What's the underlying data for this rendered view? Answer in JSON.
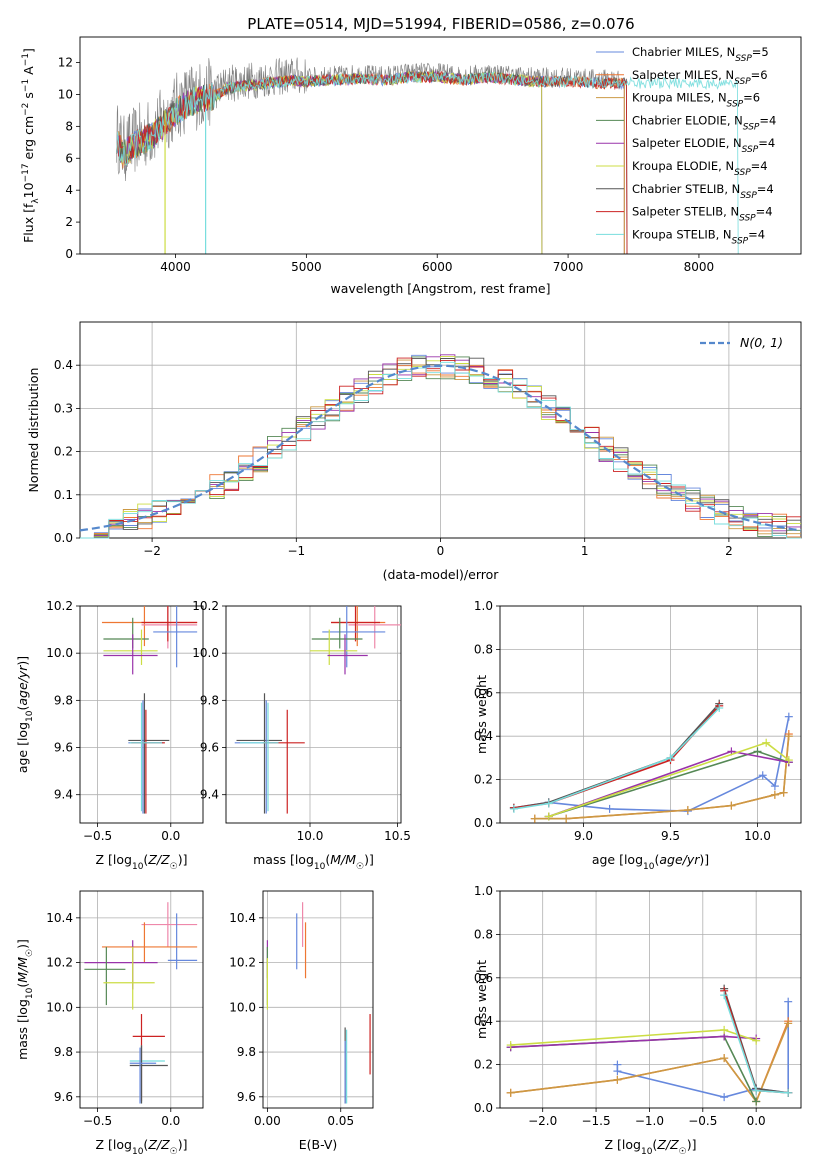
{
  "figure": {
    "title": "PLATE=0514, MJD=51994, FIBERID=0586, z=0.076"
  },
  "chart_data": [
    {
      "id": "spectrum",
      "type": "line",
      "xlabel": "wavelength [Angstrom, rest frame]",
      "ylabel": "Flux [f_λ 10^-17 erg cm^-2 s^-1 A^-1]",
      "xlim": [
        3270,
        8780
      ],
      "ylim": [
        0,
        13.6
      ],
      "xticks": [
        4000,
        5000,
        6000,
        7000,
        8000
      ],
      "yticks": [
        0,
        2,
        4,
        6,
        8,
        10,
        12
      ],
      "legend_position": "top-right",
      "data_series": {
        "name": "",
        "color": "#808080",
        "x": [
          3550,
          3600,
          3700,
          3800,
          3900,
          4000,
          4100,
          4200,
          4300,
          4400,
          4500,
          4600,
          4700,
          4800,
          4900,
          5000,
          5200,
          5400,
          5600,
          5800,
          6000,
          6200,
          6400,
          6600,
          6800,
          7000,
          7200,
          7400
        ],
        "y": [
          7.5,
          6.5,
          7.2,
          7.6,
          8.3,
          9.2,
          9.8,
          10.0,
          10.2,
          10.7,
          10.8,
          10.9,
          11.0,
          11.1,
          11.2,
          11.1,
          11.2,
          11.3,
          11.2,
          11.4,
          11.4,
          11.2,
          11.4,
          11.2,
          11.1,
          11.1,
          11.0,
          11.0
        ]
      },
      "series": [
        {
          "name": "Chabrier MILES",
          "nssp": "5",
          "color": "#6688dd",
          "x_end": 7430
        },
        {
          "name": "Salpeter MILES",
          "nssp": "6",
          "color": "#ee7733",
          "x_end": 7430
        },
        {
          "name": "Kroupa MILES",
          "nssp": "6",
          "color": "#cc9944",
          "x_end": 7430
        },
        {
          "name": "Chabrier ELODIE",
          "nssp": "4",
          "color": "#558855",
          "x_end": 6800
        },
        {
          "name": "Salpeter ELODIE",
          "nssp": "4",
          "color": "#9933aa",
          "x_end": 6800
        },
        {
          "name": "Kroupa ELODIE",
          "nssp": "4",
          "color": "#ccdd44",
          "x_end": 6800
        },
        {
          "name": "Chabrier STELIB",
          "nssp": "4",
          "color": "#555555",
          "x_end": 7450
        },
        {
          "name": "Salpeter STELIB",
          "nssp": "4",
          "color": "#cc2222",
          "x_end": 7450
        },
        {
          "name": "Kroupa STELIB",
          "nssp": "4",
          "color": "#77dddd",
          "x_end": 8300
        }
      ]
    },
    {
      "id": "residual-histogram",
      "type": "area",
      "xlabel": "(data-model)/error",
      "ylabel": "Normed distribution",
      "xlim": [
        -2.5,
        2.5
      ],
      "ylim": [
        0,
        0.5
      ],
      "xticks": [
        -2,
        -1,
        0,
        1,
        2
      ],
      "yticks": [
        0.0,
        0.1,
        0.2,
        0.3,
        0.4
      ],
      "bin_width": 0.1,
      "legend": "N(0, 1)",
      "legend_position": "top-right",
      "gaussian": {
        "mean": 0,
        "sigma": 1,
        "color": "#5588cc"
      }
    },
    {
      "id": "age-vs-z",
      "type": "scatter",
      "xlabel": "Z [log10(Z/Z☉)]",
      "ylabel": "age [log10(age/yr)]",
      "xlim": [
        -0.62,
        0.22
      ],
      "ylim": [
        9.28,
        10.2
      ],
      "xticks": [
        -0.5,
        0.0
      ],
      "yticks": [
        9.4,
        9.6,
        9.8,
        10.0,
        10.2
      ],
      "points": [
        {
          "color": "#ee7733",
          "x": -0.18,
          "xmin": -0.47,
          "xmax": 0.18,
          "y": 10.13,
          "ymin": 10.03,
          "ymax": 10.2
        },
        {
          "color": "#ee88aa",
          "x": -0.02,
          "xmin": -0.2,
          "xmax": 0.18,
          "y": 10.12,
          "ymin": 10.02,
          "ymax": 10.2
        },
        {
          "color": "#cc2222",
          "x": -0.02,
          "xmin": -0.2,
          "xmax": 0.18,
          "y": 10.13,
          "ymin": 10.05,
          "ymax": 10.2
        },
        {
          "color": "#6688dd",
          "x": 0.04,
          "xmin": -0.12,
          "xmax": 0.18,
          "y": 10.09,
          "ymin": 9.94,
          "ymax": 10.2
        },
        {
          "color": "#558855",
          "x": -0.26,
          "xmin": -0.46,
          "xmax": -0.15,
          "y": 10.06,
          "ymin": 10.02,
          "ymax": 10.15
        },
        {
          "color": "#ccdd44",
          "x": -0.2,
          "xmin": -0.46,
          "xmax": -0.09,
          "y": 10.01,
          "ymin": 9.95,
          "ymax": 10.1
        },
        {
          "color": "#9933aa",
          "x": -0.26,
          "xmin": -0.46,
          "xmax": -0.09,
          "y": 9.99,
          "ymin": 9.91,
          "ymax": 10.08
        },
        {
          "color": "#555555",
          "x": -0.18,
          "xmin": -0.29,
          "xmax": -0.01,
          "y": 9.63,
          "ymin": 9.32,
          "ymax": 9.83
        },
        {
          "color": "#6688dd",
          "x": -0.19,
          "xmin": -0.29,
          "xmax": -0.05,
          "y": 9.62,
          "ymin": 9.32,
          "ymax": 9.8
        },
        {
          "color": "#cc2222",
          "x": -0.17,
          "xmin": -0.27,
          "xmax": -0.04,
          "y": 9.62,
          "ymin": 9.32,
          "ymax": 9.76
        },
        {
          "color": "#77dddd",
          "x": -0.2,
          "xmin": -0.28,
          "xmax": -0.06,
          "y": 9.62,
          "ymin": 9.33,
          "ymax": 9.79
        }
      ]
    },
    {
      "id": "age-vs-mass",
      "type": "scatter",
      "xlabel": "mass [log10(M/M☉)]",
      "ylabel": "",
      "xlim": [
        9.52,
        10.52
      ],
      "ylim": [
        9.28,
        10.2
      ],
      "xticks": [
        10.0,
        10.5
      ],
      "yticks": [
        9.4,
        9.6,
        9.8,
        10.0,
        10.2
      ],
      "points": [
        {
          "color": "#ee7733",
          "x": 10.27,
          "xmin": 10.12,
          "xmax": 10.43,
          "y": 10.13,
          "ymin": 10.03,
          "ymax": 10.2
        },
        {
          "color": "#ee88aa",
          "x": 10.37,
          "xmin": 10.22,
          "xmax": 10.52,
          "y": 10.12,
          "ymin": 10.02,
          "ymax": 10.2
        },
        {
          "color": "#cc2222",
          "x": 10.26,
          "xmin": 10.12,
          "xmax": 10.4,
          "y": 10.13,
          "ymin": 10.05,
          "ymax": 10.2
        },
        {
          "color": "#6688dd",
          "x": 10.21,
          "xmin": 10.07,
          "xmax": 10.43,
          "y": 10.09,
          "ymin": 9.94,
          "ymax": 10.2
        },
        {
          "color": "#558855",
          "x": 10.17,
          "xmin": 10.01,
          "xmax": 10.3,
          "y": 10.06,
          "ymin": 10.02,
          "ymax": 10.15
        },
        {
          "color": "#ccdd44",
          "x": 10.11,
          "xmin": 10.0,
          "xmax": 10.27,
          "y": 10.01,
          "ymin": 9.95,
          "ymax": 10.1
        },
        {
          "color": "#9933aa",
          "x": 10.2,
          "xmin": 10.1,
          "xmax": 10.33,
          "y": 9.99,
          "ymin": 9.91,
          "ymax": 10.08
        },
        {
          "color": "#555555",
          "x": 9.74,
          "xmin": 9.58,
          "xmax": 9.84,
          "y": 9.63,
          "ymin": 9.32,
          "ymax": 9.83
        },
        {
          "color": "#6688dd",
          "x": 9.75,
          "xmin": 9.57,
          "xmax": 9.82,
          "y": 9.62,
          "ymin": 9.32,
          "ymax": 9.8
        },
        {
          "color": "#cc2222",
          "x": 9.87,
          "xmin": 9.73,
          "xmax": 9.97,
          "y": 9.62,
          "ymin": 9.32,
          "ymax": 9.76
        },
        {
          "color": "#77dddd",
          "x": 9.76,
          "xmin": 9.6,
          "xmax": 9.82,
          "y": 9.62,
          "ymin": 9.33,
          "ymax": 9.79
        }
      ]
    },
    {
      "id": "weight-vs-age",
      "type": "line",
      "xlabel": "age [log10(age/yr)]",
      "ylabel": "mass weight",
      "xlim": [
        8.52,
        10.25
      ],
      "ylim": [
        0,
        1.0
      ],
      "xticks": [
        9.0,
        9.5,
        10.0
      ],
      "yticks": [
        0.0,
        0.2,
        0.4,
        0.6,
        0.8,
        1.0
      ],
      "series": [
        {
          "name": "Chabrier MILES",
          "color": "#6688dd",
          "x": [
            8.6,
            8.8,
            9.15,
            9.6,
            10.03,
            10.1,
            10.18
          ],
          "y": [
            0.07,
            0.095,
            0.065,
            0.055,
            0.22,
            0.17,
            0.49
          ]
        },
        {
          "name": "Salpeter MILES",
          "color": "#ee7733",
          "x": [
            8.72,
            8.9,
            9.6,
            9.85,
            10.1,
            10.15,
            10.18
          ],
          "y": [
            0.02,
            0.02,
            0.06,
            0.08,
            0.13,
            0.14,
            0.41
          ]
        },
        {
          "name": "Kroupa MILES",
          "color": "#cc9944",
          "x": [
            8.72,
            8.9,
            9.6,
            9.85,
            10.1,
            10.15,
            10.18
          ],
          "y": [
            0.02,
            0.02,
            0.06,
            0.08,
            0.13,
            0.14,
            0.4
          ]
        },
        {
          "name": "Chabrier ELODIE",
          "color": "#558855",
          "x": [
            8.8,
            10.0,
            10.18
          ],
          "y": [
            0.03,
            0.33,
            0.28
          ]
        },
        {
          "name": "Salpeter ELODIE",
          "color": "#9933aa",
          "x": [
            8.8,
            9.85,
            10.18
          ],
          "y": [
            0.03,
            0.33,
            0.28
          ]
        },
        {
          "name": "Kroupa ELODIE",
          "color": "#ccdd44",
          "x": [
            8.8,
            10.05,
            10.18
          ],
          "y": [
            0.03,
            0.37,
            0.29
          ]
        },
        {
          "name": "Chabrier STELIB",
          "color": "#555555",
          "x": [
            8.6,
            8.8,
            9.5,
            9.78
          ],
          "y": [
            0.07,
            0.095,
            0.3,
            0.55
          ]
        },
        {
          "name": "Salpeter STELIB",
          "color": "#cc2222",
          "x": [
            8.6,
            8.8,
            9.5,
            9.78
          ],
          "y": [
            0.07,
            0.09,
            0.29,
            0.54
          ]
        },
        {
          "name": "Kroupa STELIB",
          "color": "#77dddd",
          "x": [
            8.6,
            8.8,
            9.5,
            9.78
          ],
          "y": [
            0.065,
            0.09,
            0.3,
            0.53
          ]
        }
      ]
    },
    {
      "id": "mass-vs-z",
      "type": "scatter",
      "xlabel": "Z [log10(Z/Z☉)]",
      "ylabel": "mass [log10(M/M☉)]",
      "xlim": [
        -0.62,
        0.22
      ],
      "ylim": [
        9.55,
        10.52
      ],
      "xticks": [
        -0.5,
        0.0
      ],
      "yticks": [
        9.6,
        9.8,
        10.0,
        10.2,
        10.4
      ],
      "points": [
        {
          "color": "#ee88aa",
          "x": -0.02,
          "xmin": -0.2,
          "xmax": 0.18,
          "y": 10.37,
          "ymin": 10.27,
          "ymax": 10.47
        },
        {
          "color": "#6688dd",
          "x": 0.04,
          "xmin": -0.02,
          "xmax": 0.18,
          "y": 10.21,
          "ymin": 10.17,
          "ymax": 10.42
        },
        {
          "color": "#ee7733",
          "x": -0.18,
          "xmin": -0.47,
          "xmax": 0.18,
          "y": 10.27,
          "ymin": 10.2,
          "ymax": 10.38
        },
        {
          "color": "#9933aa",
          "x": -0.26,
          "xmin": -0.59,
          "xmax": -0.09,
          "y": 10.2,
          "ymin": 10.08,
          "ymax": 10.3
        },
        {
          "color": "#558855",
          "x": -0.44,
          "xmin": -0.59,
          "xmax": -0.31,
          "y": 10.17,
          "ymin": 10.01,
          "ymax": 10.27
        },
        {
          "color": "#ccdd44",
          "x": -0.26,
          "xmin": -0.46,
          "xmax": -0.11,
          "y": 10.11,
          "ymin": 9.99,
          "ymax": 10.27
        },
        {
          "color": "#cc2222",
          "x": -0.2,
          "xmin": -0.26,
          "xmax": -0.04,
          "y": 9.87,
          "ymin": 9.58,
          "ymax": 9.97
        },
        {
          "color": "#77dddd",
          "x": -0.2,
          "xmin": -0.28,
          "xmax": -0.04,
          "y": 9.76,
          "ymin": 9.57,
          "ymax": 9.83
        },
        {
          "color": "#555555",
          "x": -0.2,
          "xmin": -0.28,
          "xmax": -0.02,
          "y": 9.74,
          "ymin": 9.57,
          "ymax": 9.83
        },
        {
          "color": "#6688dd",
          "x": -0.21,
          "xmin": -0.28,
          "xmax": -0.1,
          "y": 9.75,
          "ymin": 9.57,
          "ymax": 9.82
        }
      ]
    },
    {
      "id": "mass-vs-ebv",
      "type": "scatter",
      "xlabel": "E(B-V)",
      "ylabel": "",
      "xlim": [
        -0.003,
        0.072
      ],
      "ylim": [
        9.55,
        10.52
      ],
      "xticks": [
        0.0,
        0.05
      ],
      "yticks": [
        9.6,
        9.8,
        10.0,
        10.2,
        10.4
      ],
      "points": [
        {
          "color": "#ee88aa",
          "x": 0.024,
          "y": 10.37,
          "ymin": 10.27,
          "ymax": 10.47
        },
        {
          "color": "#6688dd",
          "x": 0.02,
          "y": 10.21,
          "ymin": 10.17,
          "ymax": 10.42
        },
        {
          "color": "#ee7733",
          "x": 0.026,
          "y": 10.27,
          "ymin": 10.13,
          "ymax": 10.38
        },
        {
          "color": "#9933aa",
          "x": 0.0,
          "y": 10.2,
          "ymin": 10.13,
          "ymax": 10.3
        },
        {
          "color": "#558855",
          "x": 0.0,
          "y": 10.17,
          "ymin": 10.01,
          "ymax": 10.27
        },
        {
          "color": "#ccdd44",
          "x": 0.0,
          "y": 10.11,
          "ymin": 9.99,
          "ymax": 10.22
        },
        {
          "color": "#cc2222",
          "x": 0.07,
          "y": 9.87,
          "ymin": 9.7,
          "ymax": 9.97
        },
        {
          "color": "#77dddd",
          "x": 0.054,
          "y": 9.76,
          "ymin": 9.57,
          "ymax": 9.9
        },
        {
          "color": "#555555",
          "x": 0.053,
          "y": 9.74,
          "ymin": 9.57,
          "ymax": 9.91
        },
        {
          "color": "#6688dd",
          "x": 0.053,
          "y": 9.75,
          "ymin": 9.57,
          "ymax": 9.85
        }
      ]
    },
    {
      "id": "weight-vs-z",
      "type": "line",
      "xlabel": "Z [log10(Z/Z☉)]",
      "ylabel": "mass weight",
      "xlim": [
        -2.4,
        0.42
      ],
      "ylim": [
        0,
        1.0
      ],
      "xticks": [
        -2.0,
        -1.5,
        -1.0,
        -0.5,
        0.0
      ],
      "yticks": [
        0.0,
        0.2,
        0.4,
        0.6,
        0.8,
        1.0
      ],
      "series": [
        {
          "name": "Chabrier MILES",
          "color": "#6688dd",
          "x": [
            -1.3,
            -1.3,
            -0.3,
            0.0,
            0.3,
            0.3
          ],
          "y": [
            0.2,
            0.17,
            0.05,
            0.09,
            0.07,
            0.49
          ]
        },
        {
          "name": "Salpeter MILES",
          "color": "#ee7733",
          "x": [
            -2.3,
            -1.3,
            -0.3,
            0.0,
            0.3
          ],
          "y": [
            0.07,
            0.13,
            0.23,
            0.03,
            0.4
          ]
        },
        {
          "name": "Kroupa MILES",
          "color": "#cc9944",
          "x": [
            -2.3,
            -1.3,
            -0.3,
            0.0,
            0.3
          ],
          "y": [
            0.07,
            0.13,
            0.23,
            0.03,
            0.39
          ]
        },
        {
          "name": "Chabrier ELODIE",
          "color": "#558855",
          "x": [
            -2.3,
            -0.3,
            0.0
          ],
          "y": [
            0.28,
            0.33,
            0.03
          ]
        },
        {
          "name": "Salpeter ELODIE",
          "color": "#9933aa",
          "x": [
            -2.3,
            -0.3,
            0.0
          ],
          "y": [
            0.28,
            0.33,
            0.32
          ]
        },
        {
          "name": "Kroupa ELODIE",
          "color": "#ccdd44",
          "x": [
            -2.3,
            -0.3,
            0.0
          ],
          "y": [
            0.29,
            0.36,
            0.31
          ]
        },
        {
          "name": "Chabrier STELIB",
          "color": "#555555",
          "x": [
            -0.3,
            0.0,
            0.3
          ],
          "y": [
            0.55,
            0.09,
            0.07
          ]
        },
        {
          "name": "Salpeter STELIB",
          "color": "#cc2222",
          "x": [
            -0.3,
            0.0,
            0.3
          ],
          "y": [
            0.54,
            0.08,
            0.07
          ]
        },
        {
          "name": "Kroupa STELIB",
          "color": "#77dddd",
          "x": [
            -0.3,
            0.0,
            0.3
          ],
          "y": [
            0.52,
            0.08,
            0.07
          ]
        }
      ]
    }
  ]
}
